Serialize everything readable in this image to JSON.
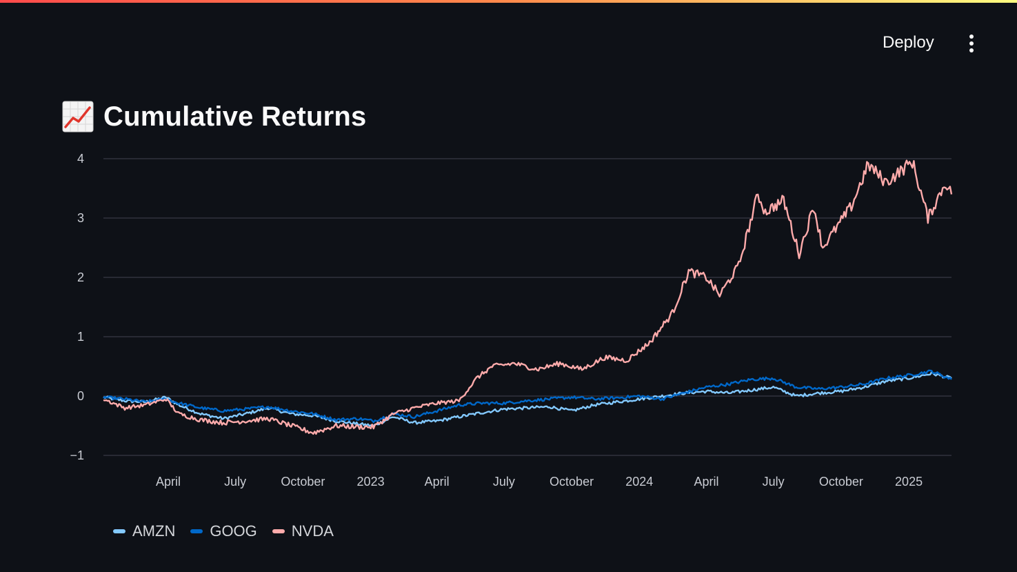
{
  "header": {
    "deploy_label": "Deploy",
    "menu_icon": "kebab-menu-icon",
    "accent_colors": [
      "#ff4b4b",
      "#ff8a4b",
      "#fffd80"
    ]
  },
  "page": {
    "title": "Cumulative Returns",
    "title_icon": "chart-increasing-emoji"
  },
  "chart_data": {
    "type": "line",
    "title": "Cumulative Returns",
    "xlabel": "",
    "ylabel": "",
    "x_range": [
      "2022-01-03",
      "2025-02-28"
    ],
    "ylim": [
      -1,
      4
    ],
    "grid": true,
    "legend_position": "bottom-left",
    "y_ticks": [
      {
        "value": 4,
        "label": "4"
      },
      {
        "value": 3,
        "label": "3"
      },
      {
        "value": 2,
        "label": "2"
      },
      {
        "value": 1,
        "label": "1"
      },
      {
        "value": 0,
        "label": "0"
      },
      {
        "value": -1,
        "label": "−1"
      }
    ],
    "x_ticks": [
      {
        "date": "2022-04-01",
        "label": "April"
      },
      {
        "date": "2022-07-01",
        "label": "July"
      },
      {
        "date": "2022-10-01",
        "label": "October"
      },
      {
        "date": "2023-01-01",
        "label": "2023"
      },
      {
        "date": "2023-04-01",
        "label": "April"
      },
      {
        "date": "2023-07-01",
        "label": "July"
      },
      {
        "date": "2023-10-01",
        "label": "October"
      },
      {
        "date": "2024-01-01",
        "label": "2024"
      },
      {
        "date": "2024-04-01",
        "label": "April"
      },
      {
        "date": "2024-07-01",
        "label": "July"
      },
      {
        "date": "2024-10-01",
        "label": "October"
      },
      {
        "date": "2025-01-01",
        "label": "2025"
      }
    ],
    "series": [
      {
        "name": "AMZN",
        "color": "#83c9ff",
        "points": [
          [
            "2022-01-03",
            -0.02
          ],
          [
            "2022-02-01",
            -0.08
          ],
          [
            "2022-03-01",
            -0.1
          ],
          [
            "2022-03-29",
            -0.02
          ],
          [
            "2022-04-15",
            -0.15
          ],
          [
            "2022-05-15",
            -0.3
          ],
          [
            "2022-06-15",
            -0.38
          ],
          [
            "2022-07-15",
            -0.3
          ],
          [
            "2022-08-15",
            -0.2
          ],
          [
            "2022-09-15",
            -0.3
          ],
          [
            "2022-10-15",
            -0.33
          ],
          [
            "2022-11-15",
            -0.42
          ],
          [
            "2022-12-15",
            -0.47
          ],
          [
            "2023-01-05",
            -0.5
          ],
          [
            "2023-02-01",
            -0.35
          ],
          [
            "2023-03-01",
            -0.45
          ],
          [
            "2023-04-01",
            -0.42
          ],
          [
            "2023-05-01",
            -0.35
          ],
          [
            "2023-06-01",
            -0.28
          ],
          [
            "2023-07-01",
            -0.22
          ],
          [
            "2023-08-01",
            -0.2
          ],
          [
            "2023-09-01",
            -0.18
          ],
          [
            "2023-10-01",
            -0.25
          ],
          [
            "2023-11-01",
            -0.15
          ],
          [
            "2023-12-01",
            -0.1
          ],
          [
            "2024-01-01",
            -0.05
          ],
          [
            "2024-02-01",
            0.0
          ],
          [
            "2024-03-01",
            0.05
          ],
          [
            "2024-04-01",
            0.08
          ],
          [
            "2024-05-01",
            0.05
          ],
          [
            "2024-06-01",
            0.1
          ],
          [
            "2024-07-01",
            0.15
          ],
          [
            "2024-08-01",
            0.0
          ],
          [
            "2024-09-01",
            0.05
          ],
          [
            "2024-10-01",
            0.08
          ],
          [
            "2024-11-01",
            0.15
          ],
          [
            "2024-12-01",
            0.25
          ],
          [
            "2025-01-01",
            0.3
          ],
          [
            "2025-02-01",
            0.38
          ],
          [
            "2025-02-28",
            0.3
          ]
        ]
      },
      {
        "name": "GOOG",
        "color": "#0068c9",
        "points": [
          [
            "2022-01-03",
            -0.02
          ],
          [
            "2022-02-01",
            -0.05
          ],
          [
            "2022-03-01",
            -0.1
          ],
          [
            "2022-03-29",
            -0.05
          ],
          [
            "2022-04-15",
            -0.12
          ],
          [
            "2022-05-15",
            -0.2
          ],
          [
            "2022-06-15",
            -0.25
          ],
          [
            "2022-07-15",
            -0.22
          ],
          [
            "2022-08-15",
            -0.18
          ],
          [
            "2022-09-15",
            -0.25
          ],
          [
            "2022-10-15",
            -0.3
          ],
          [
            "2022-11-15",
            -0.4
          ],
          [
            "2022-12-15",
            -0.38
          ],
          [
            "2023-01-05",
            -0.42
          ],
          [
            "2023-02-01",
            -0.3
          ],
          [
            "2023-03-01",
            -0.35
          ],
          [
            "2023-04-01",
            -0.25
          ],
          [
            "2023-05-01",
            -0.15
          ],
          [
            "2023-06-01",
            -0.12
          ],
          [
            "2023-07-01",
            -0.12
          ],
          [
            "2023-08-01",
            -0.08
          ],
          [
            "2023-09-01",
            -0.05
          ],
          [
            "2023-10-01",
            -0.02
          ],
          [
            "2023-11-01",
            -0.05
          ],
          [
            "2023-12-01",
            -0.03
          ],
          [
            "2024-01-01",
            0.0
          ],
          [
            "2024-02-01",
            -0.05
          ],
          [
            "2024-03-01",
            0.05
          ],
          [
            "2024-04-01",
            0.15
          ],
          [
            "2024-05-01",
            0.2
          ],
          [
            "2024-06-01",
            0.28
          ],
          [
            "2024-07-01",
            0.3
          ],
          [
            "2024-08-01",
            0.15
          ],
          [
            "2024-09-01",
            0.12
          ],
          [
            "2024-10-01",
            0.15
          ],
          [
            "2024-11-01",
            0.2
          ],
          [
            "2024-12-01",
            0.3
          ],
          [
            "2025-01-01",
            0.35
          ],
          [
            "2025-02-01",
            0.42
          ],
          [
            "2025-02-28",
            0.28
          ]
        ]
      },
      {
        "name": "NVDA",
        "color": "#ffabab",
        "points": [
          [
            "2022-01-03",
            -0.05
          ],
          [
            "2022-02-01",
            -0.2
          ],
          [
            "2022-03-01",
            -0.15
          ],
          [
            "2022-03-29",
            -0.05
          ],
          [
            "2022-04-15",
            -0.3
          ],
          [
            "2022-05-15",
            -0.4
          ],
          [
            "2022-06-15",
            -0.45
          ],
          [
            "2022-07-15",
            -0.42
          ],
          [
            "2022-08-15",
            -0.38
          ],
          [
            "2022-09-15",
            -0.5
          ],
          [
            "2022-10-15",
            -0.62
          ],
          [
            "2022-11-15",
            -0.5
          ],
          [
            "2022-12-15",
            -0.52
          ],
          [
            "2023-01-05",
            -0.52
          ],
          [
            "2023-02-01",
            -0.3
          ],
          [
            "2023-03-01",
            -0.2
          ],
          [
            "2023-04-01",
            -0.12
          ],
          [
            "2023-05-01",
            -0.08
          ],
          [
            "2023-05-25",
            0.3
          ],
          [
            "2023-06-15",
            0.5
          ],
          [
            "2023-07-15",
            0.55
          ],
          [
            "2023-08-15",
            0.45
          ],
          [
            "2023-09-15",
            0.55
          ],
          [
            "2023-10-15",
            0.45
          ],
          [
            "2023-11-15",
            0.65
          ],
          [
            "2023-12-15",
            0.6
          ],
          [
            "2024-01-15",
            0.9
          ],
          [
            "2024-02-15",
            1.4
          ],
          [
            "2024-03-08",
            2.1
          ],
          [
            "2024-04-01",
            2.0
          ],
          [
            "2024-04-19",
            1.7
          ],
          [
            "2024-05-15",
            2.2
          ],
          [
            "2024-06-10",
            3.4
          ],
          [
            "2024-06-20",
            3.1
          ],
          [
            "2024-07-15",
            3.3
          ],
          [
            "2024-08-05",
            2.4
          ],
          [
            "2024-08-25",
            3.2
          ],
          [
            "2024-09-06",
            2.5
          ],
          [
            "2024-10-15",
            3.2
          ],
          [
            "2024-11-07",
            3.9
          ],
          [
            "2024-12-01",
            3.6
          ],
          [
            "2025-01-06",
            3.95
          ],
          [
            "2025-01-27",
            3.0
          ],
          [
            "2025-02-20",
            3.6
          ],
          [
            "2025-02-28",
            3.4
          ]
        ]
      }
    ]
  }
}
